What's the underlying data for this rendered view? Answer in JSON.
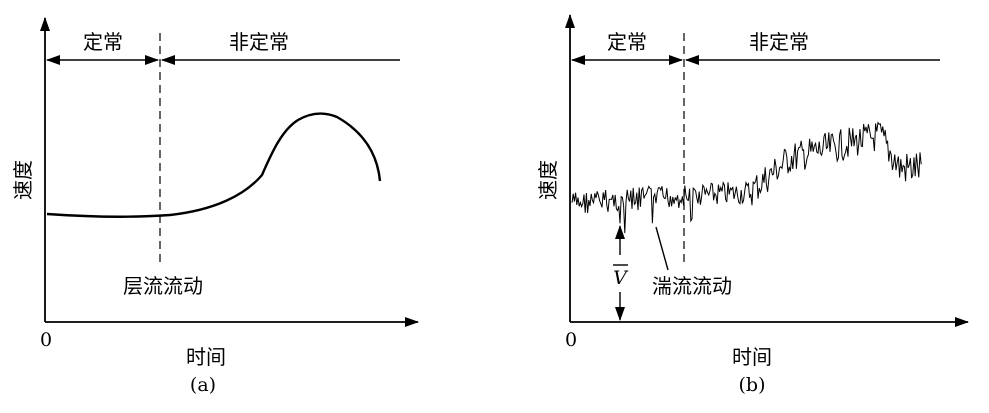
{
  "panels": [
    {
      "id": "a",
      "caption": "(a)",
      "origin_label": "0",
      "x_axis_label": "时间",
      "y_axis_label": "速度",
      "steady_label": "定常",
      "unsteady_label": "非定常",
      "flow_label": "层流流动"
    },
    {
      "id": "b",
      "caption": "(b)",
      "origin_label": "0",
      "x_axis_label": "时间",
      "y_axis_label": "速度",
      "steady_label": "定常",
      "unsteady_label": "非定常",
      "flow_label": "湍流流动",
      "mean_symbol": "V"
    }
  ]
}
